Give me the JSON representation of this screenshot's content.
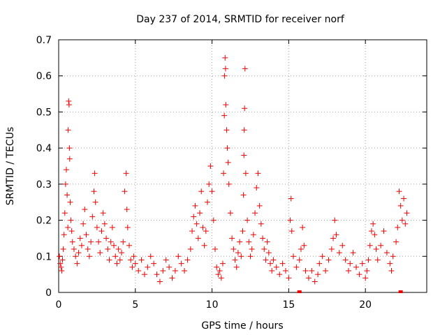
{
  "chart_data": {
    "type": "scatter",
    "title": "Day 237 of 2014, SRMTID for receiver norf",
    "xlabel": "GPS time / hours",
    "ylabel": "SRMTID / TECUs",
    "xlim": [
      0,
      24
    ],
    "ylim": [
      0,
      0.7
    ],
    "xticks": [
      0,
      5,
      10,
      15,
      20
    ],
    "xtick_labels": [
      "0",
      "5",
      "10",
      "15",
      "20"
    ],
    "yticks": [
      0,
      0.1,
      0.2,
      0.3,
      0.4,
      0.5,
      0.6,
      0.7
    ],
    "ytick_labels": [
      "0",
      "0.1",
      "0.2",
      "0.3",
      "0.4",
      "0.5",
      "0.6",
      "0.7"
    ],
    "grid": true,
    "marker": "plus",
    "color": "#ee0000",
    "series": [
      {
        "name": "SRMTID",
        "points": [
          [
            0.05,
            0.1
          ],
          [
            0.1,
            0.08
          ],
          [
            0.15,
            0.07
          ],
          [
            0.2,
            0.06
          ],
          [
            0.25,
            0.09
          ],
          [
            0.3,
            0.12
          ],
          [
            0.35,
            0.16
          ],
          [
            0.4,
            0.22
          ],
          [
            0.45,
            0.3
          ],
          [
            0.5,
            0.34
          ],
          [
            0.55,
            0.27
          ],
          [
            0.6,
            0.18
          ],
          [
            0.62,
            0.45
          ],
          [
            0.65,
            0.53
          ],
          [
            0.68,
            0.52
          ],
          [
            0.7,
            0.4
          ],
          [
            0.72,
            0.37
          ],
          [
            0.75,
            0.25
          ],
          [
            0.8,
            0.2
          ],
          [
            0.85,
            0.17
          ],
          [
            0.9,
            0.14
          ],
          [
            1.0,
            0.12
          ],
          [
            1.1,
            0.1
          ],
          [
            1.2,
            0.08
          ],
          [
            1.3,
            0.11
          ],
          [
            1.4,
            0.15
          ],
          [
            1.5,
            0.13
          ],
          [
            1.6,
            0.19
          ],
          [
            1.7,
            0.23
          ],
          [
            1.8,
            0.16
          ],
          [
            1.9,
            0.12
          ],
          [
            2.0,
            0.1
          ],
          [
            2.1,
            0.14
          ],
          [
            2.2,
            0.21
          ],
          [
            2.3,
            0.28
          ],
          [
            2.35,
            0.33
          ],
          [
            2.4,
            0.25
          ],
          [
            2.5,
            0.18
          ],
          [
            2.6,
            0.14
          ],
          [
            2.7,
            0.11
          ],
          [
            2.8,
            0.17
          ],
          [
            2.9,
            0.22
          ],
          [
            3.0,
            0.19
          ],
          [
            3.1,
            0.15
          ],
          [
            3.2,
            0.12
          ],
          [
            3.3,
            0.09
          ],
          [
            3.4,
            0.14
          ],
          [
            3.5,
            0.18
          ],
          [
            3.6,
            0.13
          ],
          [
            3.7,
            0.1
          ],
          [
            3.8,
            0.08
          ],
          [
            3.9,
            0.12
          ],
          [
            4.0,
            0.09
          ],
          [
            4.1,
            0.11
          ],
          [
            4.2,
            0.14
          ],
          [
            4.3,
            0.28
          ],
          [
            4.4,
            0.33
          ],
          [
            4.45,
            0.23
          ],
          [
            4.5,
            0.18
          ],
          [
            4.6,
            0.13
          ],
          [
            4.7,
            0.09
          ],
          [
            4.8,
            0.07
          ],
          [
            4.9,
            0.1
          ],
          [
            5.0,
            0.08
          ],
          [
            5.2,
            0.06
          ],
          [
            5.4,
            0.09
          ],
          [
            5.6,
            0.05
          ],
          [
            5.8,
            0.07
          ],
          [
            6.0,
            0.1
          ],
          [
            6.2,
            0.08
          ],
          [
            6.4,
            0.05
          ],
          [
            6.6,
            0.03
          ],
          [
            6.8,
            0.06
          ],
          [
            7.0,
            0.09
          ],
          [
            7.2,
            0.07
          ],
          [
            7.4,
            0.04
          ],
          [
            7.6,
            0.06
          ],
          [
            7.8,
            0.1
          ],
          [
            8.0,
            0.08
          ],
          [
            8.2,
            0.06
          ],
          [
            8.4,
            0.09
          ],
          [
            8.6,
            0.12
          ],
          [
            8.7,
            0.17
          ],
          [
            8.8,
            0.21
          ],
          [
            8.9,
            0.24
          ],
          [
            9.0,
            0.19
          ],
          [
            9.1,
            0.15
          ],
          [
            9.2,
            0.22
          ],
          [
            9.3,
            0.28
          ],
          [
            9.4,
            0.18
          ],
          [
            9.5,
            0.13
          ],
          [
            9.6,
            0.17
          ],
          [
            9.7,
            0.25
          ],
          [
            9.8,
            0.3
          ],
          [
            9.9,
            0.35
          ],
          [
            10.0,
            0.28
          ],
          [
            10.1,
            0.2
          ],
          [
            10.2,
            0.12
          ],
          [
            10.3,
            0.07
          ],
          [
            10.4,
            0.05
          ],
          [
            10.5,
            0.06
          ],
          [
            10.6,
            0.04
          ],
          [
            10.7,
            0.08
          ],
          [
            10.75,
            0.33
          ],
          [
            10.8,
            0.49
          ],
          [
            10.82,
            0.6
          ],
          [
            10.85,
            0.65
          ],
          [
            10.88,
            0.62
          ],
          [
            10.9,
            0.52
          ],
          [
            10.95,
            0.45
          ],
          [
            11.0,
            0.4
          ],
          [
            11.05,
            0.36
          ],
          [
            11.1,
            0.3
          ],
          [
            11.2,
            0.22
          ],
          [
            11.3,
            0.15
          ],
          [
            11.4,
            0.12
          ],
          [
            11.5,
            0.09
          ],
          [
            11.6,
            0.07
          ],
          [
            11.7,
            0.11
          ],
          [
            11.8,
            0.14
          ],
          [
            11.9,
            0.1
          ],
          [
            12.0,
            0.17
          ],
          [
            12.05,
            0.27
          ],
          [
            12.08,
            0.38
          ],
          [
            12.1,
            0.45
          ],
          [
            12.12,
            0.51
          ],
          [
            12.15,
            0.62
          ],
          [
            12.2,
            0.33
          ],
          [
            12.3,
            0.2
          ],
          [
            12.4,
            0.14
          ],
          [
            12.5,
            0.1
          ],
          [
            12.6,
            0.12
          ],
          [
            12.7,
            0.16
          ],
          [
            12.8,
            0.22
          ],
          [
            12.9,
            0.29
          ],
          [
            13.0,
            0.33
          ],
          [
            13.1,
            0.24
          ],
          [
            13.2,
            0.19
          ],
          [
            13.3,
            0.15
          ],
          [
            13.4,
            0.12
          ],
          [
            13.5,
            0.09
          ],
          [
            13.6,
            0.14
          ],
          [
            13.7,
            0.11
          ],
          [
            13.8,
            0.08
          ],
          [
            13.9,
            0.06
          ],
          [
            14.0,
            0.09
          ],
          [
            14.2,
            0.07
          ],
          [
            14.4,
            0.05
          ],
          [
            14.6,
            0.08
          ],
          [
            14.8,
            0.06
          ],
          [
            15.0,
            0.04
          ],
          [
            15.1,
            0.2
          ],
          [
            15.15,
            0.26
          ],
          [
            15.2,
            0.17
          ],
          [
            15.3,
            0.1
          ],
          [
            15.5,
            0.07
          ],
          [
            15.7,
            0.09
          ],
          [
            15.8,
            0.12
          ],
          [
            15.9,
            0.18
          ],
          [
            16.0,
            0.13
          ],
          [
            16.1,
            0.06
          ],
          [
            16.3,
            0.04
          ],
          [
            16.5,
            0.06
          ],
          [
            16.7,
            0.03
          ],
          [
            16.9,
            0.05
          ],
          [
            17.0,
            0.08
          ],
          [
            17.2,
            0.1
          ],
          [
            17.4,
            0.06
          ],
          [
            17.6,
            0.09
          ],
          [
            17.8,
            0.12
          ],
          [
            17.9,
            0.15
          ],
          [
            18.0,
            0.2
          ],
          [
            18.1,
            0.16
          ],
          [
            18.3,
            0.11
          ],
          [
            18.5,
            0.13
          ],
          [
            18.7,
            0.09
          ],
          [
            18.9,
            0.06
          ],
          [
            19.0,
            0.08
          ],
          [
            19.2,
            0.11
          ],
          [
            19.4,
            0.07
          ],
          [
            19.6,
            0.05
          ],
          [
            19.8,
            0.08
          ],
          [
            20.0,
            0.04
          ],
          [
            20.1,
            0.06
          ],
          [
            20.2,
            0.09
          ],
          [
            20.3,
            0.13
          ],
          [
            20.4,
            0.17
          ],
          [
            20.5,
            0.19
          ],
          [
            20.6,
            0.16
          ],
          [
            20.7,
            0.12
          ],
          [
            20.8,
            0.09
          ],
          [
            21.0,
            0.13
          ],
          [
            21.2,
            0.17
          ],
          [
            21.4,
            0.11
          ],
          [
            21.6,
            0.08
          ],
          [
            21.7,
            0.06
          ],
          [
            21.8,
            0.1
          ],
          [
            22.0,
            0.14
          ],
          [
            22.1,
            0.18
          ],
          [
            22.2,
            0.28
          ],
          [
            22.3,
            0.24
          ],
          [
            22.4,
            0.2
          ],
          [
            22.5,
            0.26
          ],
          [
            22.6,
            0.19
          ],
          [
            22.7,
            0.22
          ]
        ]
      }
    ],
    "x_axis_markers": [
      15.7,
      22.3
    ]
  }
}
